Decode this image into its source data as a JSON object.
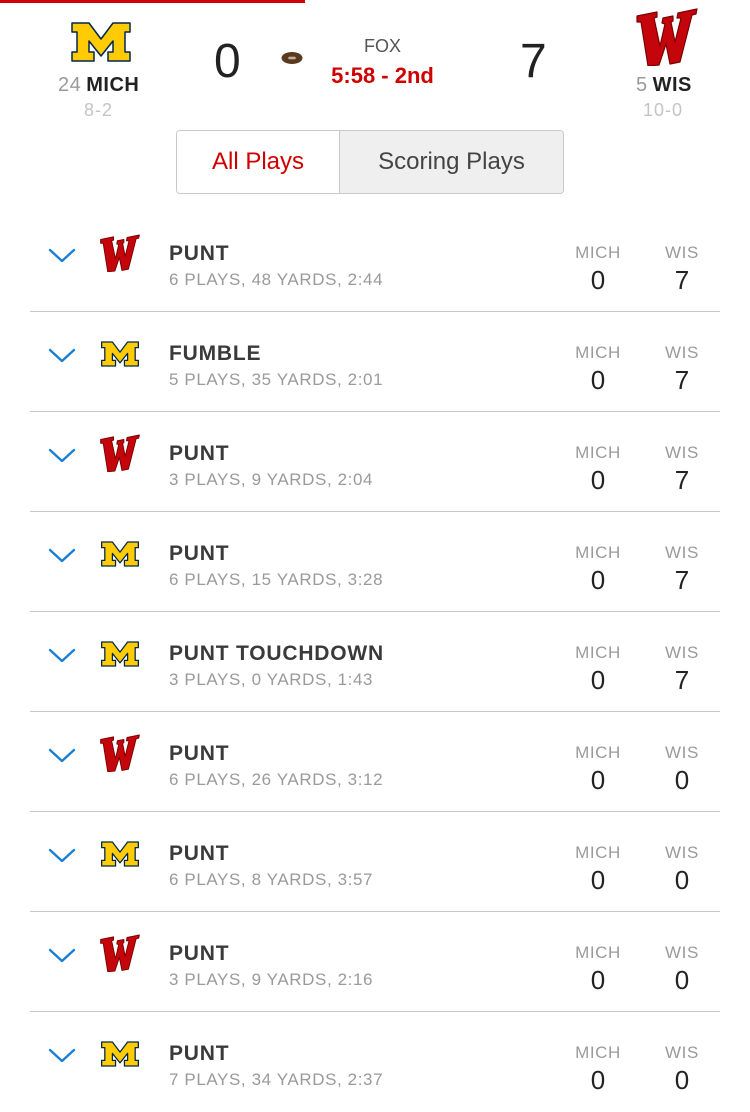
{
  "game": {
    "home": {
      "rank": "24",
      "abbr": "MICH",
      "record": "8-2",
      "score": "0"
    },
    "away": {
      "rank": "5",
      "abbr": "WIS",
      "record": "10-0",
      "score": "7"
    },
    "network": "FOX",
    "clock": "5:58 - 2nd"
  },
  "tabs": {
    "all": "All Plays",
    "scoring": "Scoring Plays",
    "active": "all"
  },
  "columns": {
    "home": "MICH",
    "away": "WIS"
  },
  "colors": {
    "accent_red": "#d00000",
    "mich_maize": "#ffcb05",
    "wis_red": "#c5050c",
    "chevron_blue": "#1a7fd4"
  },
  "drives": [
    {
      "team": "wis",
      "logo": "wisconsin-logo",
      "result": "PUNT",
      "summary": "6 PLAYS, 48 YARDS, 2:44",
      "home": "0",
      "away": "7"
    },
    {
      "team": "mich",
      "logo": "michigan-logo",
      "result": "FUMBLE",
      "summary": "5 PLAYS, 35 YARDS, 2:01",
      "home": "0",
      "away": "7"
    },
    {
      "team": "wis",
      "logo": "wisconsin-logo",
      "result": "PUNT",
      "summary": "3 PLAYS, 9 YARDS, 2:04",
      "home": "0",
      "away": "7"
    },
    {
      "team": "mich",
      "logo": "michigan-logo",
      "result": "PUNT",
      "summary": "6 PLAYS, 15 YARDS, 3:28",
      "home": "0",
      "away": "7"
    },
    {
      "team": "mich",
      "logo": "michigan-logo",
      "result": "PUNT TOUCHDOWN",
      "summary": "3 PLAYS, 0 YARDS, 1:43",
      "home": "0",
      "away": "7"
    },
    {
      "team": "wis",
      "logo": "wisconsin-logo",
      "result": "PUNT",
      "summary": "6 PLAYS, 26 YARDS, 3:12",
      "home": "0",
      "away": "0"
    },
    {
      "team": "mich",
      "logo": "michigan-logo",
      "result": "PUNT",
      "summary": "6 PLAYS, 8 YARDS, 3:57",
      "home": "0",
      "away": "0"
    },
    {
      "team": "wis",
      "logo": "wisconsin-logo",
      "result": "PUNT",
      "summary": "3 PLAYS, 9 YARDS, 2:16",
      "home": "0",
      "away": "0"
    },
    {
      "team": "mich",
      "logo": "michigan-logo",
      "result": "PUNT",
      "summary": "7 PLAYS, 34 YARDS, 2:37",
      "home": "0",
      "away": "0"
    }
  ]
}
